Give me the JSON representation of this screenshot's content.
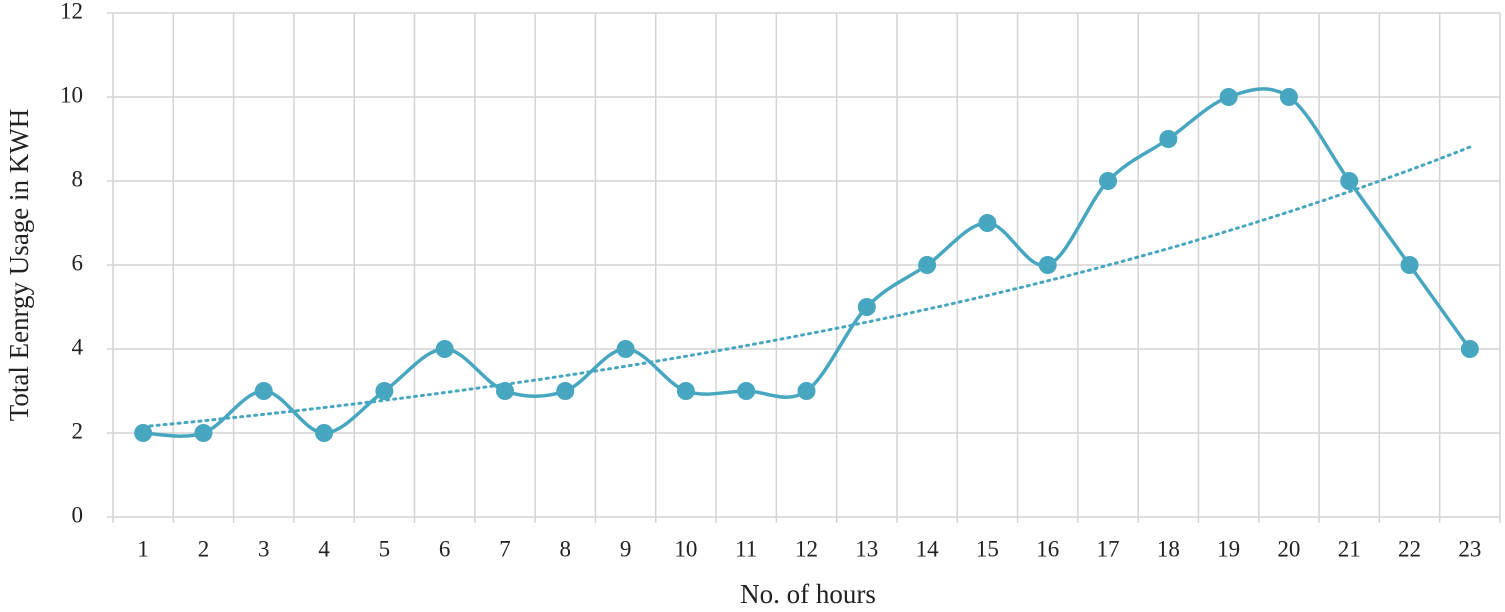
{
  "chart_data": {
    "type": "line",
    "x_label": "No. of hours",
    "y_label": "Total Eenrgy Usage in KWH",
    "categories": [
      "1",
      "2",
      "3",
      "4",
      "5",
      "6",
      "7",
      "8",
      "9",
      "10",
      "11",
      "12",
      "13",
      "14",
      "15",
      "16",
      "17",
      "18",
      "19",
      "20",
      "21",
      "22",
      "23"
    ],
    "values": [
      2,
      2,
      3,
      2,
      3,
      4,
      3,
      3,
      4,
      3,
      3,
      3,
      5,
      6,
      7,
      6,
      8,
      9,
      10,
      10,
      8,
      6,
      4
    ],
    "color": "#47a6c0",
    "smooth": true,
    "markers": true,
    "trendline": "exponential",
    "ylim": [
      0,
      12
    ],
    "yticks": [
      0,
      2,
      4,
      6,
      8,
      10,
      12
    ],
    "grid": true
  }
}
